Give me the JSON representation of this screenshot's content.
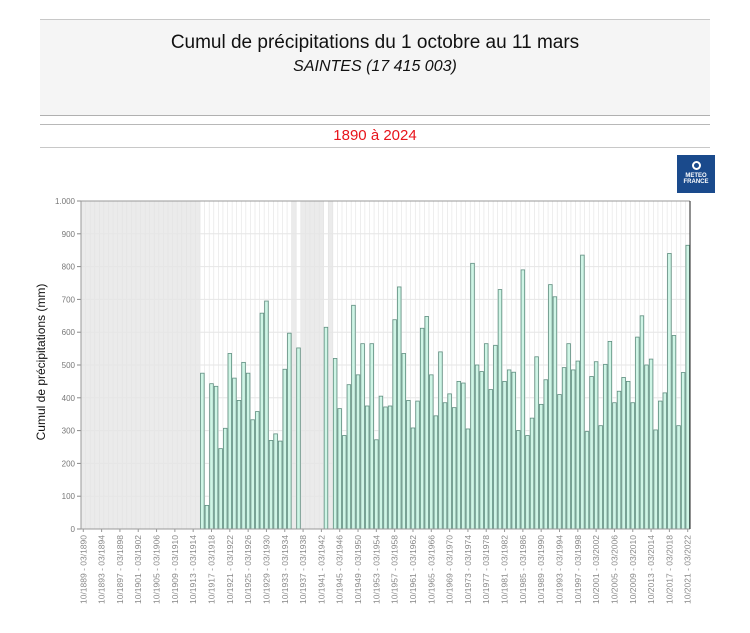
{
  "header": {
    "title": "Cumul de précipitations du 1 octobre au 11 mars",
    "subtitle": "SAINTES (17 415 003)"
  },
  "period": "1890 à 2024",
  "logo": {
    "line1": "METEO",
    "line2": "FRANCE",
    "icon": "meteo-france-logo-icon"
  },
  "colors": {
    "bar_fill": "#cff5e6",
    "bar_stroke": "#5f8f80",
    "missing_fill": "#ebebeb",
    "grid": "#e6e6e6",
    "period_text": "#e8141b",
    "logo_bg": "#1a4a8c"
  },
  "chart_data": {
    "type": "bar",
    "title": "Cumul de précipitations du 1 octobre au 11 mars",
    "subtitle": "SAINTES (17 415 003)",
    "xlabel": "",
    "ylabel": "Cumul de précipitations (mm)",
    "ylim": [
      0,
      1000
    ],
    "yticks": [
      "0",
      "100",
      "200",
      "300",
      "400",
      "500",
      "600",
      "700",
      "800",
      "900",
      "1.000"
    ],
    "grid": true,
    "legend": null,
    "first_season_end_year": 1890,
    "last_season_end_year": 2024,
    "xtick_labels": [
      "10/1889 - 03/1890",
      "10/1893 - 03/1894",
      "10/1897 - 03/1898",
      "10/1901 - 03/1902",
      "10/1905 - 03/1906",
      "10/1909 - 03/1910",
      "10/1913 - 03/1914",
      "10/1917 - 03/1918",
      "10/1921 - 03/1922",
      "10/1925 - 03/1926",
      "10/1929 - 03/1930",
      "10/1933 - 03/1934",
      "10/1937 - 03/1938",
      "10/1941 - 03/1942",
      "10/1945 - 03/1946",
      "10/1949 - 03/1950",
      "10/1953 - 03/1954",
      "10/1957 - 03/1958",
      "10/1961 - 03/1962",
      "10/1965 - 03/1966",
      "10/1969 - 03/1970",
      "10/1973 - 03/1974",
      "10/1977 - 03/1978",
      "10/1981 - 03/1982",
      "10/1985 - 03/1986",
      "10/1989 - 03/1990",
      "10/1993 - 03/1994",
      "10/1997 - 03/1998",
      "10/2001 - 03/2002",
      "10/2005 - 03/2006",
      "10/2009 - 03/2010",
      "10/2013 - 03/2014",
      "10/2017 - 03/2018",
      "10/2021 - 03/2022"
    ],
    "categories": [
      1890,
      1891,
      1892,
      1893,
      1894,
      1895,
      1896,
      1897,
      1898,
      1899,
      1900,
      1901,
      1902,
      1903,
      1904,
      1905,
      1906,
      1907,
      1908,
      1909,
      1910,
      1911,
      1912,
      1913,
      1914,
      1915,
      1916,
      1917,
      1918,
      1919,
      1920,
      1921,
      1922,
      1923,
      1924,
      1925,
      1926,
      1927,
      1928,
      1929,
      1930,
      1931,
      1932,
      1933,
      1934,
      1935,
      1936,
      1937,
      1938,
      1939,
      1940,
      1941,
      1942,
      1943,
      1944,
      1945,
      1946,
      1947,
      1948,
      1949,
      1950,
      1951,
      1952,
      1953,
      1954,
      1955,
      1956,
      1957,
      1958,
      1959,
      1960,
      1961,
      1962,
      1963,
      1964,
      1965,
      1966,
      1967,
      1968,
      1969,
      1970,
      1971,
      1972,
      1973,
      1974,
      1975,
      1976,
      1977,
      1978,
      1979,
      1980,
      1981,
      1982,
      1983,
      1984,
      1985,
      1986,
      1987,
      1988,
      1989,
      1990,
      1991,
      1992,
      1993,
      1994,
      1995,
      1996,
      1997,
      1998,
      1999,
      2000,
      2001,
      2002,
      2003,
      2004,
      2005,
      2006,
      2007,
      2008,
      2009,
      2010,
      2011,
      2012,
      2013,
      2014,
      2015,
      2016,
      2017,
      2018,
      2019,
      2020,
      2021,
      2022,
      2023,
      2024
    ],
    "values": [
      null,
      null,
      null,
      null,
      null,
      null,
      null,
      null,
      null,
      null,
      null,
      null,
      null,
      null,
      null,
      null,
      null,
      null,
      null,
      null,
      null,
      null,
      null,
      null,
      null,
      null,
      475,
      72,
      443,
      435,
      245,
      307,
      535,
      460,
      392,
      508,
      475,
      333,
      358,
      658,
      695,
      270,
      290,
      268,
      487,
      597,
      null,
      552,
      null,
      null,
      null,
      null,
      null,
      615,
      null,
      520,
      367,
      285,
      440,
      682,
      470,
      565,
      375,
      565,
      272,
      405,
      372,
      375,
      638,
      738,
      535,
      392,
      308,
      390,
      612,
      648,
      470,
      345,
      540,
      385,
      412,
      370,
      450,
      445,
      305,
      810,
      500,
      480,
      565,
      425,
      560,
      730,
      450,
      485,
      478,
      300,
      790,
      285,
      338,
      525,
      380,
      455,
      745,
      708,
      410,
      492,
      565,
      485,
      512,
      835,
      297,
      465,
      510,
      315,
      502,
      572,
      385,
      420,
      462,
      450,
      385,
      585,
      650,
      500,
      518,
      302,
      390,
      415,
      840,
      590,
      315,
      477,
      865
    ],
    "missing_periods": [
      [
        1890,
        1915
      ],
      [
        1936,
        1936
      ],
      [
        1938,
        1942
      ],
      [
        1944,
        1944
      ]
    ]
  }
}
